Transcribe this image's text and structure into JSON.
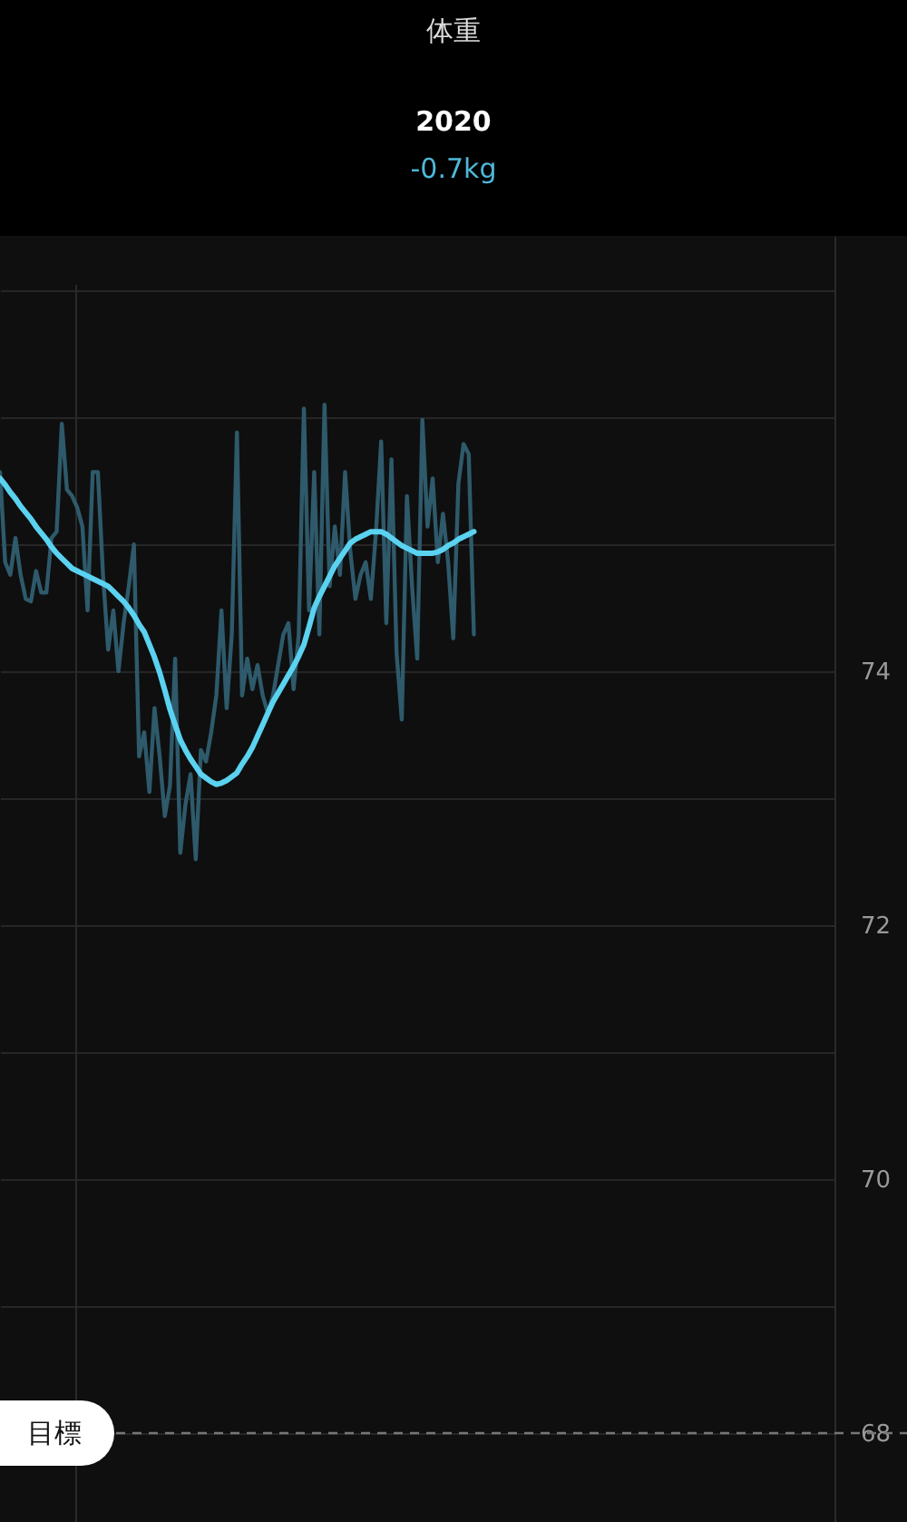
{
  "chart_data": {
    "type": "line",
    "title": "体重",
    "subtitle": "2020",
    "annotations": [
      "-0.7kg"
    ],
    "categories": [
      null,
      null,
      null,
      null,
      null,
      null,
      null,
      null,
      null,
      null,
      null,
      null,
      null,
      null,
      null,
      null,
      null,
      null,
      null,
      null,
      null,
      null,
      null,
      null,
      null,
      null,
      null,
      null,
      null,
      null,
      null,
      null,
      null,
      null,
      null,
      null,
      null,
      null,
      null,
      null,
      null,
      null,
      null,
      null,
      null,
      null,
      null,
      null,
      null,
      null,
      null,
      null,
      null,
      null,
      null,
      null,
      null,
      null,
      null,
      null,
      null,
      null,
      null,
      null,
      null,
      null,
      null,
      null,
      null,
      null,
      null,
      null,
      null,
      null,
      null,
      null,
      null,
      null,
      null,
      null,
      null,
      null,
      null,
      null,
      null,
      null,
      null,
      null,
      null,
      null,
      null,
      null,
      null,
      null,
      null,
      null,
      null,
      null,
      null,
      null,
      null,
      null,
      null,
      null,
      null,
      null,
      null,
      null,
      null,
      null,
      null,
      null,
      null,
      null,
      null,
      null,
      null,
      null,
      null,
      null,
      null,
      null,
      null,
      null,
      null,
      null,
      null,
      null,
      null,
      null,
      null,
      null,
      null,
      null,
      null,
      null,
      null,
      null,
      null,
      null,
      null,
      null,
      null,
      null,
      null,
      null,
      null,
      null,
      null,
      null,
      null,
      null,
      null,
      null,
      null,
      null,
      null,
      null,
      null,
      null,
      null,
      null,
      null
    ],
    "ylim": [
      67.3,
      77.43
    ],
    "yticks": [
      68,
      {
        "value": 69,
        "label": null
      },
      70,
      {
        "value": 71,
        "label": null
      },
      72,
      {
        "value": 73,
        "label": null
      },
      74,
      {
        "value": 75,
        "label": null
      },
      {
        "value": 76,
        "label": null
      },
      {
        "value": 77,
        "label": null
      }
    ],
    "tick_labels": "y",
    "grid": "y",
    "series": [
      {
        "color": "#2e5a6b",
        "values": [
          75.57,
          74.86,
          74.76,
          75.05,
          74.76,
          74.57,
          74.55,
          74.79,
          74.62,
          74.62,
          75.05,
          75.1,
          75.95,
          75.43,
          75.38,
          75.29,
          75.14,
          74.48,
          75.57,
          75.57,
          74.76,
          74.17,
          74.48,
          74.0,
          74.38,
          74.67,
          75.0,
          73.33,
          73.52,
          73.05,
          73.71,
          73.33,
          72.86,
          73.1,
          74.1,
          72.57,
          72.95,
          73.19,
          72.52,
          73.38,
          73.29,
          73.52,
          73.81,
          74.48,
          73.71,
          74.29,
          75.88,
          73.81,
          74.1,
          73.86,
          74.05,
          73.81,
          73.67,
          73.81,
          74.05,
          74.29,
          74.38,
          73.86,
          74.29,
          76.07,
          74.48,
          75.57,
          74.29,
          76.1,
          74.67,
          75.14,
          74.76,
          75.57,
          74.95,
          74.57,
          74.76,
          74.86,
          74.57,
          75.1,
          75.81,
          74.38,
          75.67,
          74.14,
          73.62,
          75.38,
          74.67,
          74.1,
          75.98,
          75.14,
          75.52,
          74.86,
          75.24,
          74.86,
          74.26,
          75.48,
          75.79,
          75.71,
          74.29,
          null,
          null,
          null,
          null,
          null,
          null,
          null,
          null,
          null,
          null,
          null,
          null,
          null,
          null,
          null,
          null,
          null,
          null,
          null,
          null,
          null,
          null,
          null,
          null,
          null,
          null,
          null,
          null,
          null,
          null,
          null,
          null,
          null,
          null,
          null,
          null,
          null,
          null,
          null,
          null,
          null,
          null,
          null,
          null,
          null,
          null,
          null,
          null,
          null,
          null,
          null,
          null,
          null,
          null,
          null,
          null,
          null,
          null,
          null,
          null,
          null,
          null,
          null,
          null,
          null,
          null,
          null,
          null,
          null,
          null
        ]
      },
      {
        "color": "#5ad2f0",
        "values": [
          75.52,
          75.47,
          75.41,
          75.36,
          75.3,
          75.25,
          75.2,
          75.14,
          75.09,
          75.04,
          74.98,
          74.93,
          74.89,
          74.85,
          74.81,
          74.79,
          74.77,
          74.75,
          74.73,
          74.71,
          74.69,
          74.67,
          74.63,
          74.59,
          74.55,
          74.5,
          74.44,
          74.37,
          74.31,
          74.21,
          74.11,
          73.99,
          73.85,
          73.7,
          73.58,
          73.46,
          73.38,
          73.31,
          73.25,
          73.19,
          73.16,
          73.13,
          73.11,
          73.12,
          73.14,
          73.17,
          73.2,
          73.27,
          73.33,
          73.4,
          73.49,
          73.58,
          73.67,
          73.76,
          73.83,
          73.9,
          73.97,
          74.04,
          74.12,
          74.21,
          74.35,
          74.5,
          74.59,
          74.67,
          74.75,
          74.83,
          74.89,
          74.95,
          75.01,
          75.04,
          75.06,
          75.08,
          75.1,
          75.1,
          75.1,
          75.08,
          75.05,
          75.02,
          74.99,
          74.97,
          74.95,
          74.93,
          74.93,
          74.93,
          74.93,
          74.94,
          74.96,
          74.99,
          75.01,
          75.04,
          75.06,
          75.08,
          75.1,
          null,
          null,
          null,
          null,
          null,
          null,
          null,
          null,
          null,
          null,
          null,
          null,
          null,
          null,
          null,
          null,
          null,
          null,
          null,
          null,
          null,
          null,
          null,
          null,
          null,
          null,
          null,
          null,
          null,
          null,
          null,
          null,
          null,
          null,
          null,
          null,
          null,
          null,
          null,
          null,
          null,
          null,
          null,
          null,
          null,
          null,
          null,
          null,
          null,
          null,
          null,
          null,
          null,
          null,
          null,
          null,
          null,
          null,
          null,
          null,
          null,
          null,
          null,
          null,
          null,
          null,
          null,
          null,
          null,
          null
        ]
      }
    ],
    "ref_lines": [
      {
        "axis": "y",
        "value": 68,
        "label": "目標",
        "color": "#777777",
        "line_style": "dashed"
      }
    ]
  }
}
